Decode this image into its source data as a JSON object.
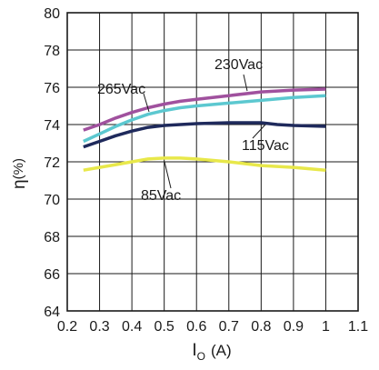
{
  "chart_data": {
    "type": "line",
    "title": "",
    "xlabel_main": "I",
    "xlabel_sub": "O",
    "xlabel_unit": "(A)",
    "ylabel_main": "η",
    "ylabel_unit": "(%)",
    "xlim": [
      0.2,
      1.1
    ],
    "ylim": [
      64,
      80
    ],
    "x_ticks": [
      "0.2",
      "0.3",
      "0.4",
      "0.5",
      "0.6",
      "0.7",
      "0.8",
      "0.9",
      "1",
      "1.1"
    ],
    "y_ticks": [
      "64",
      "66",
      "68",
      "70",
      "72",
      "74",
      "76",
      "78",
      "80"
    ],
    "grid": true,
    "series": [
      {
        "name": "230Vac",
        "color": "#a0519e",
        "x": [
          0.25,
          0.3,
          0.35,
          0.4,
          0.45,
          0.5,
          0.55,
          0.6,
          0.7,
          0.8,
          0.9,
          1.0
        ],
        "y": [
          73.7,
          74.0,
          74.35,
          74.65,
          74.9,
          75.1,
          75.25,
          75.35,
          75.55,
          75.75,
          75.85,
          75.9
        ]
      },
      {
        "name": "265Vac",
        "color": "#5cc8d0",
        "x": [
          0.25,
          0.3,
          0.35,
          0.4,
          0.45,
          0.5,
          0.55,
          0.6,
          0.7,
          0.8,
          0.9,
          1.0
        ],
        "y": [
          73.1,
          73.5,
          73.9,
          74.25,
          74.55,
          74.75,
          74.9,
          75.0,
          75.15,
          75.3,
          75.45,
          75.55
        ]
      },
      {
        "name": "115Vac",
        "color": "#1f2a5c",
        "x": [
          0.25,
          0.3,
          0.35,
          0.4,
          0.45,
          0.5,
          0.55,
          0.6,
          0.7,
          0.8,
          0.85,
          0.9,
          1.0
        ],
        "y": [
          72.8,
          73.1,
          73.4,
          73.65,
          73.85,
          73.95,
          74.0,
          74.05,
          74.1,
          74.1,
          74.0,
          73.95,
          73.9
        ]
      },
      {
        "name": "85Vac",
        "color": "#e8e84a",
        "x": [
          0.25,
          0.3,
          0.35,
          0.4,
          0.45,
          0.5,
          0.55,
          0.6,
          0.7,
          0.8,
          0.9,
          1.0
        ],
        "y": [
          71.55,
          71.7,
          71.85,
          72.0,
          72.15,
          72.2,
          72.2,
          72.15,
          72.0,
          71.8,
          71.7,
          71.55
        ]
      }
    ]
  }
}
